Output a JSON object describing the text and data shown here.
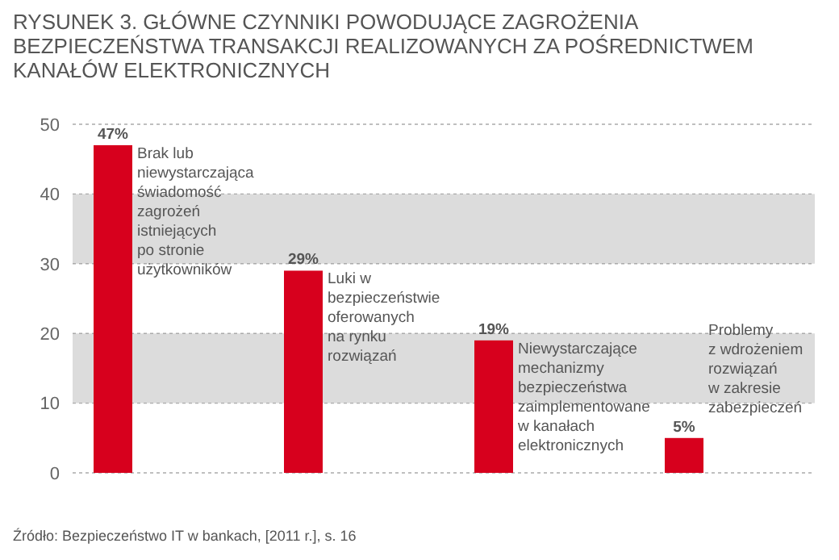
{
  "chart_data": {
    "type": "bar",
    "title": "RYSUNEK 3. GŁÓWNE CZYNNIKI POWODUJĄCE ZAGROŻENIA\nBEZPIECZEŃSTWA TRANSAKCJI REALIZOWANYCH ZA POŚREDNICTWEM\nKANAŁÓW ELEKTRONICZNYCH",
    "categories": [
      null,
      null,
      null,
      null
    ],
    "values": [
      47,
      29,
      19,
      5
    ],
    "value_labels": [
      "47%",
      "29%",
      "19%",
      "5%"
    ],
    "color": "#d7001d",
    "ylim": [
      0,
      50
    ],
    "yticks": [
      0,
      10,
      20,
      30,
      40,
      50
    ],
    "grid": "y",
    "annotations": [
      "Brak lub\nniewystarczająca\nświadomość\nzagrożeń\nistniejących\npo stronie\nużytkowników",
      "Luki w\nbezpieczeństwie\noferowanych\nna rynku\nrozwiązań",
      "Niewystarczające\nmechanizmy\nbezpieczeństwa\nzaimplementowane\nw kanałach\nelektronicznych",
      "Problemy\nz wdrożeniem\nrozwiązań\nw zakresie\nzabezpieczeń",
      "Źródło: Bezpieczeństwo IT w bankach, [2011 r.], s. 16"
    ]
  }
}
